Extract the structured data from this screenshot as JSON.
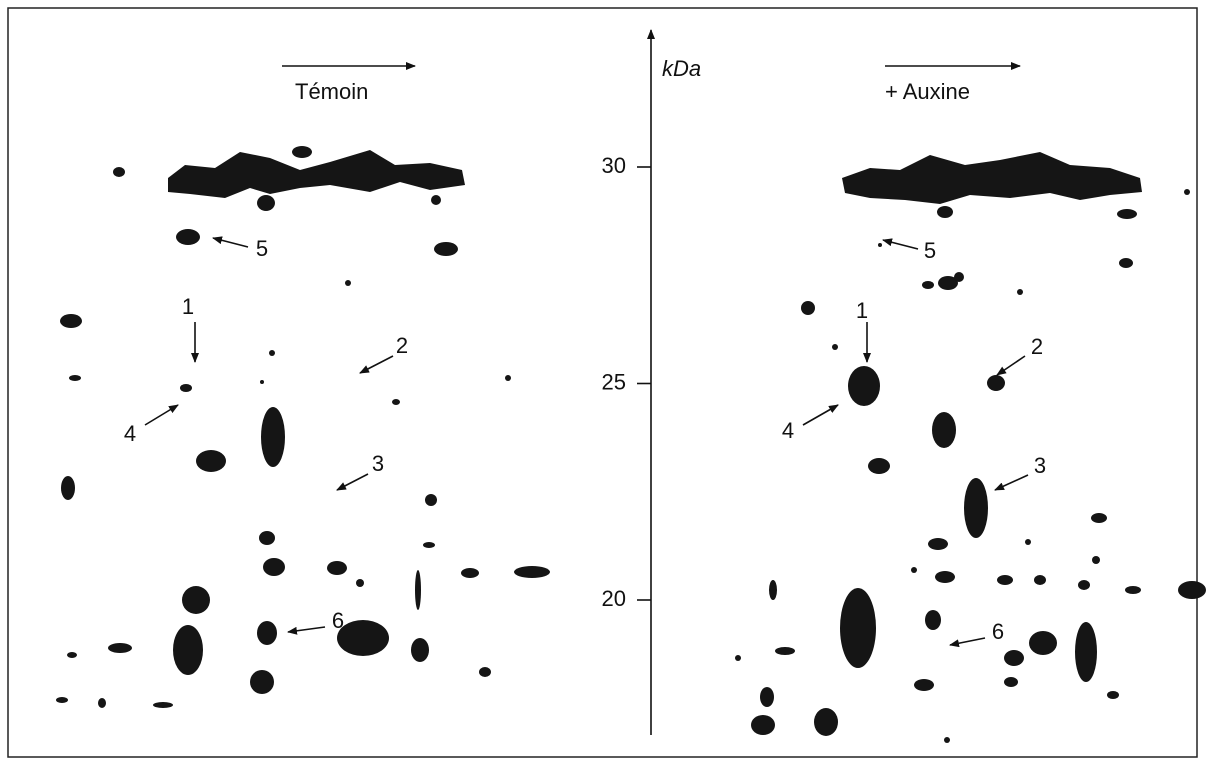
{
  "axis": {
    "label": "kDa",
    "ticks": [
      30,
      25,
      20
    ]
  },
  "panels": [
    {
      "title": "Témoin",
      "spot_labels": [
        "1",
        "2",
        "3",
        "4",
        "5",
        "6"
      ]
    },
    {
      "title": "+ Auxine",
      "spot_labels": [
        "1",
        "2",
        "3",
        "4",
        "5",
        "6"
      ]
    }
  ]
}
